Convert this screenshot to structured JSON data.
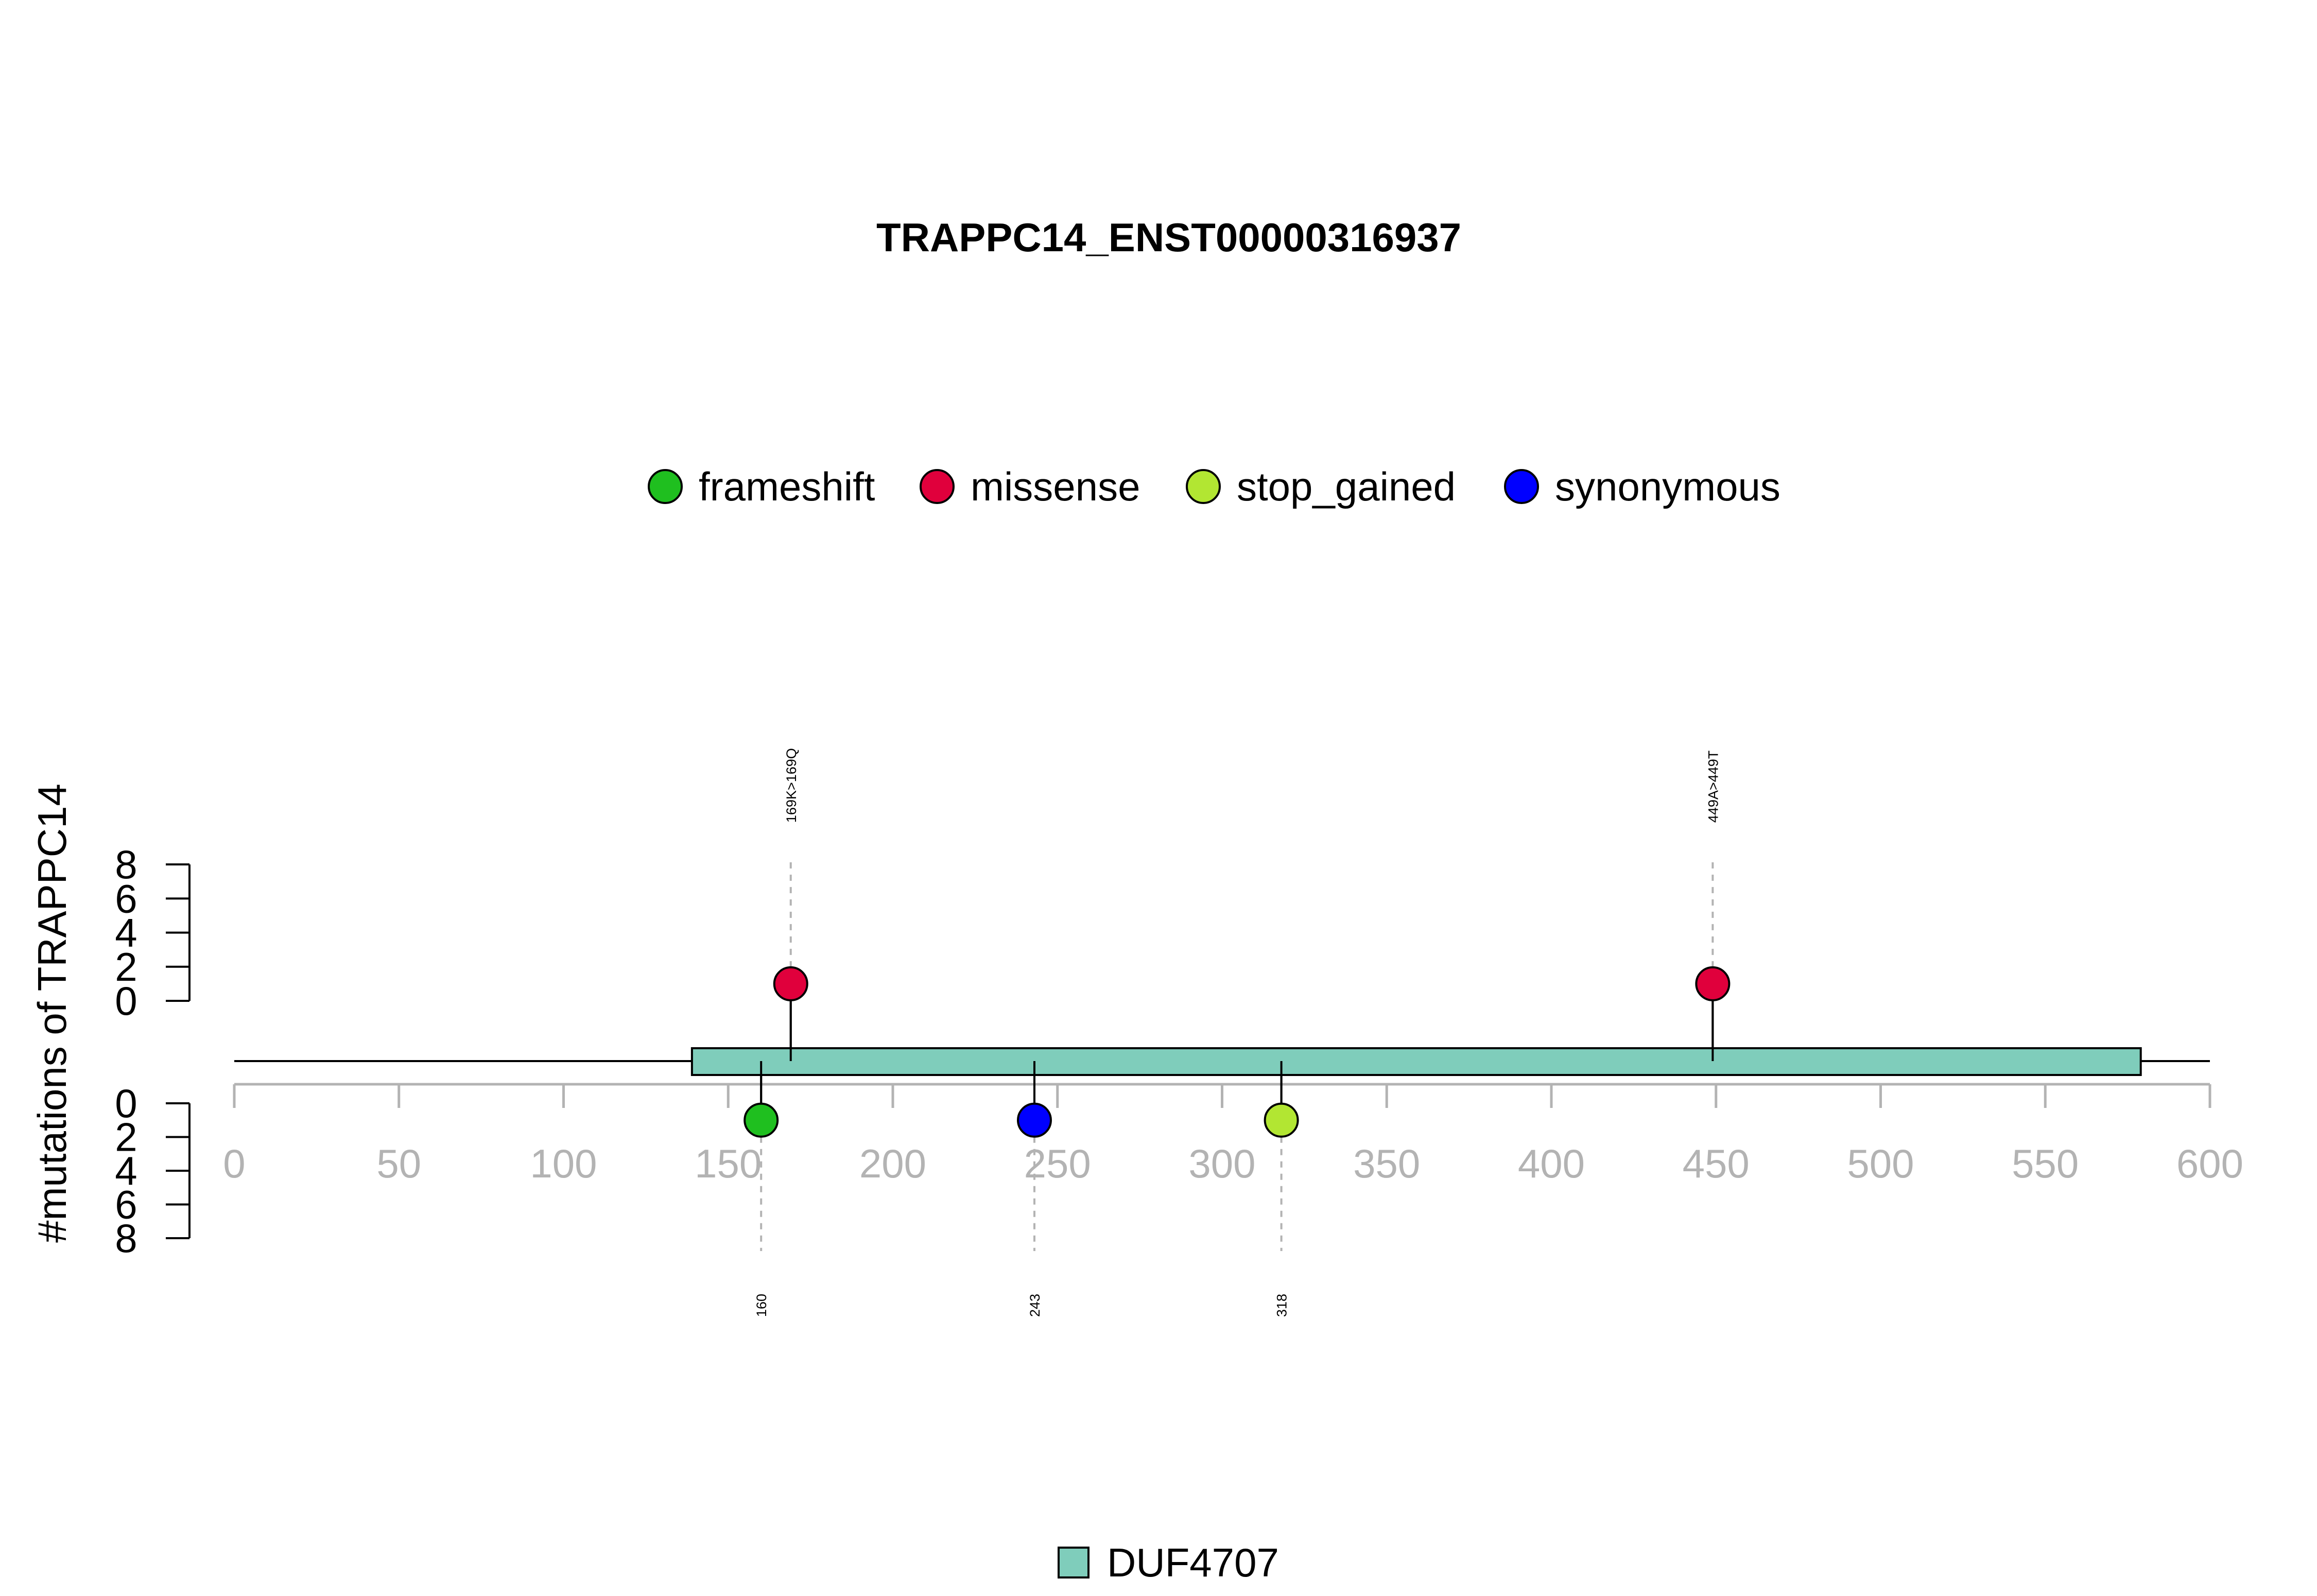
{
  "chart_data": {
    "type": "lollipop",
    "title": "TRAPPC14_ENST00000316937",
    "ylabel": "#mutations of TRAPPC14",
    "protein_length": 600,
    "xlim": [
      0,
      600
    ],
    "x_ticks": [
      0,
      50,
      100,
      150,
      200,
      250,
      300,
      350,
      400,
      450,
      500,
      550,
      600
    ],
    "y_ticks_top": [
      0,
      2,
      4,
      6,
      8
    ],
    "y_ticks_bottom": [
      0,
      2,
      4,
      6,
      8
    ],
    "ylim": [
      0,
      8
    ],
    "legend_variants": [
      {
        "name": "frameshift",
        "color": "#1fbf1f"
      },
      {
        "name": "missense",
        "color": "#e0003c"
      },
      {
        "name": "stop_gained",
        "color": "#b2e632"
      },
      {
        "name": "synonymous",
        "color": "#0000ff"
      }
    ],
    "domains": [
      {
        "name": "DUF4707",
        "start": 139,
        "end": 579,
        "color": "#7fcdbb"
      }
    ],
    "mutations_top": [
      {
        "position": 169,
        "label": "169K>169Q",
        "count": 1,
        "type": "missense",
        "color": "#e0003c"
      },
      {
        "position": 449,
        "label": "449A>449T",
        "count": 1,
        "type": "missense",
        "color": "#e0003c"
      }
    ],
    "mutations_bottom": [
      {
        "position": 160,
        "label": "160",
        "count": 1,
        "type": "frameshift",
        "color": "#1fbf1f"
      },
      {
        "position": 243,
        "label": "243",
        "count": 1,
        "type": "synonymous",
        "color": "#0000ff"
      },
      {
        "position": 318,
        "label": "318",
        "count": 1,
        "type": "stop_gained",
        "color": "#b2e632"
      }
    ]
  }
}
